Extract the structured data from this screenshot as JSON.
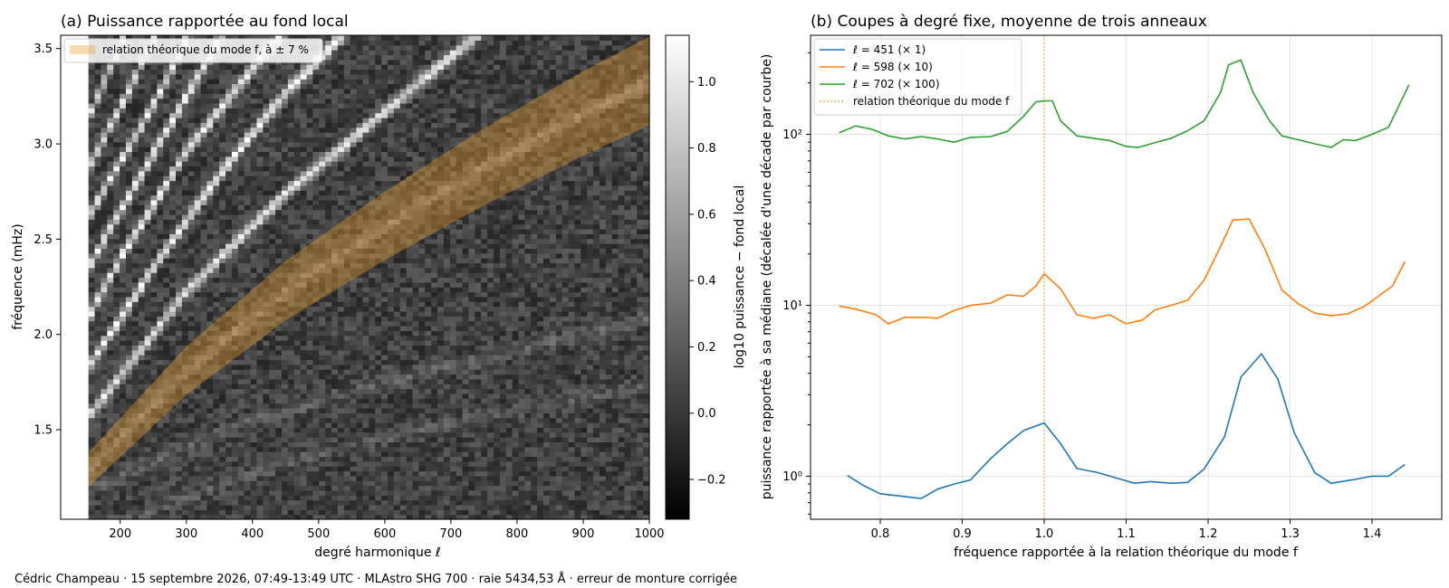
{
  "footer": "Cédric Champeau · 15 septembre 2026, 07:49-13:49 UTC · MLAstro SHG 700 · raie 5434,53 Å · erreur de monture corrigée",
  "chart_data": [
    {
      "type": "heatmap",
      "title": "(a) Puissance rapportée au fond local",
      "xlabel": "degré harmonique ℓ",
      "ylabel": "fréquence (mHz)",
      "xlim": [
        110,
        1000
      ],
      "ylim": [
        1.03,
        3.57
      ],
      "xticks": [
        200,
        300,
        400,
        500,
        600,
        700,
        800,
        900,
        1000
      ],
      "yticks": [
        1.5,
        2.0,
        2.5,
        3.0,
        3.5
      ],
      "data_extent": {
        "x": [
          152,
          1000
        ],
        "y": [
          1.03,
          3.57
        ]
      },
      "colorbar": {
        "label": "log10 puissance − fond local",
        "range": [
          -0.32,
          1.14
        ],
        "ticks": [
          -0.2,
          0.0,
          0.2,
          0.4,
          0.6,
          0.8,
          1.0
        ],
        "tick_labels": [
          "−0.2",
          "0.0",
          "0.2",
          "0.4",
          "0.6",
          "0.8",
          "1.0"
        ],
        "colormap": "gray"
      },
      "legend": {
        "location": "top-left",
        "entries": [
          "relation théorique du mode f, à ± 7 %"
        ]
      },
      "band": {
        "color": "#f0a030",
        "opacity": 0.38,
        "relative_halfwidth": 0.07,
        "center": {
          "x": [
            152,
            300,
            450,
            600,
            750,
            900,
            1000
          ],
          "y": [
            1.29,
            1.81,
            2.23,
            2.57,
            2.88,
            3.16,
            3.33
          ]
        }
      },
      "ridges": [
        {
          "x": [
            152,
            300,
            450,
            600,
            750,
            900,
            1000
          ],
          "y": [
            1.29,
            1.81,
            2.23,
            2.57,
            2.88,
            3.16,
            3.33
          ],
          "strength": 0.28
        },
        {
          "x": [
            152,
            300,
            450,
            600,
            700
          ],
          "y": [
            1.57,
            2.23,
            2.74,
            3.17,
            3.46
          ],
          "strength": 0.85
        },
        {
          "x": [
            152,
            250,
            350,
            450,
            550
          ],
          "y": [
            1.83,
            2.35,
            2.84,
            3.27,
            3.62
          ],
          "strength": 0.95
        },
        {
          "x": [
            152,
            200,
            300,
            400,
            450
          ],
          "y": [
            2.09,
            2.4,
            2.96,
            3.4,
            3.6
          ],
          "strength": 0.95
        },
        {
          "x": [
            152,
            200,
            250,
            300,
            350
          ],
          "y": [
            2.35,
            2.65,
            2.95,
            3.25,
            3.55
          ],
          "strength": 0.95
        },
        {
          "x": [
            152,
            190,
            230,
            270,
            300
          ],
          "y": [
            2.62,
            2.85,
            3.08,
            3.34,
            3.55
          ],
          "strength": 0.9
        },
        {
          "x": [
            152,
            180,
            210,
            240
          ],
          "y": [
            2.88,
            3.06,
            3.26,
            3.48
          ],
          "strength": 0.85
        },
        {
          "x": [
            152,
            175,
            200
          ],
          "y": [
            3.14,
            3.32,
            3.52
          ],
          "strength": 0.8
        },
        {
          "x": [
            240,
            400,
            600,
            800
          ],
          "y": [
            1.32,
            1.55,
            1.75,
            1.92
          ],
          "strength": 0.15
        },
        {
          "x": [
            280,
            450,
            650,
            850
          ],
          "y": [
            1.12,
            1.33,
            1.5,
            1.64
          ],
          "strength": 0.12
        }
      ]
    },
    {
      "type": "line",
      "title": "(b) Coupes à degré fixe, moyenne de trois anneaux",
      "xlabel": "fréquence rapportée à la relation théorique du mode f",
      "ylabel": "puissance rapportée à sa médiane (décalée d'une décade par courbe)",
      "xlim": [
        0.715,
        1.485
      ],
      "ylim": [
        0.56,
        380
      ],
      "yscale": "log",
      "grid": true,
      "xticks": [
        0.8,
        0.9,
        1.0,
        1.1,
        1.2,
        1.3,
        1.4
      ],
      "yticks": [
        1,
        10,
        100
      ],
      "ytick_labels": [
        "10⁰",
        "10¹",
        "10²"
      ],
      "vline": {
        "x": 1.0,
        "color": "#f0a020",
        "label": "relation théorique du mode f"
      },
      "legend": {
        "location": "top-left"
      },
      "series": [
        {
          "name": "ℓ = 451 (× 1)",
          "color": "#1f77b4",
          "x": [
            0.76,
            0.78,
            0.8,
            0.83,
            0.85,
            0.87,
            0.89,
            0.91,
            0.935,
            0.955,
            0.975,
            1.0,
            1.02,
            1.04,
            1.065,
            1.09,
            1.11,
            1.13,
            1.155,
            1.175,
            1.195,
            1.22,
            1.24,
            1.265,
            1.285,
            1.305,
            1.33,
            1.35,
            1.375,
            1.4,
            1.42,
            1.44
          ],
          "y": [
            1.01,
            0.88,
            0.79,
            0.76,
            0.74,
            0.84,
            0.9,
            0.95,
            1.27,
            1.55,
            1.85,
            2.05,
            1.55,
            1.11,
            1.05,
            0.97,
            0.91,
            0.93,
            0.91,
            0.92,
            1.1,
            1.7,
            3.8,
            5.2,
            3.7,
            1.8,
            1.05,
            0.91,
            0.95,
            1.0,
            1.0,
            1.17
          ]
        },
        {
          "name": "ℓ = 598 (× 10)",
          "color": "#ff7f0e",
          "x": [
            0.75,
            0.77,
            0.795,
            0.81,
            0.83,
            0.855,
            0.87,
            0.89,
            0.91,
            0.935,
            0.955,
            0.975,
            0.99,
            1.0,
            1.02,
            1.04,
            1.06,
            1.08,
            1.1,
            1.12,
            1.135,
            1.155,
            1.175,
            1.195,
            1.215,
            1.23,
            1.25,
            1.27,
            1.29,
            1.31,
            1.33,
            1.35,
            1.37,
            1.39,
            1.41,
            1.425,
            1.44
          ],
          "y": [
            9.9,
            9.5,
            8.8,
            7.8,
            8.5,
            8.5,
            8.4,
            9.3,
            10.0,
            10.3,
            11.5,
            11.3,
            13.0,
            15.3,
            12.5,
            8.8,
            8.4,
            8.8,
            7.8,
            8.2,
            9.4,
            10.0,
            10.7,
            14.0,
            22.0,
            31.5,
            32.0,
            21.0,
            12.3,
            10.2,
            9.0,
            8.7,
            8.9,
            9.8,
            11.5,
            13.0,
            18.0
          ]
        },
        {
          "name": "ℓ = 702 (× 100)",
          "color": "#2ca02c",
          "x": [
            0.75,
            0.77,
            0.79,
            0.81,
            0.83,
            0.85,
            0.87,
            0.89,
            0.91,
            0.935,
            0.955,
            0.975,
            0.99,
            1.0,
            1.01,
            1.02,
            1.04,
            1.06,
            1.08,
            1.1,
            1.115,
            1.13,
            1.155,
            1.175,
            1.195,
            1.215,
            1.225,
            1.24,
            1.255,
            1.275,
            1.29,
            1.31,
            1.33,
            1.35,
            1.365,
            1.38,
            1.4,
            1.42,
            1.445
          ],
          "y": [
            102,
            112,
            107,
            98,
            94,
            97,
            94,
            90,
            96,
            97,
            104,
            128,
            155,
            157,
            157,
            120,
            98,
            95,
            92,
            85,
            84,
            88,
            95,
            105,
            120,
            175,
            255,
            272,
            175,
            120,
            98,
            93,
            88,
            84,
            93,
            92,
            100,
            110,
            195
          ]
        }
      ]
    }
  ]
}
